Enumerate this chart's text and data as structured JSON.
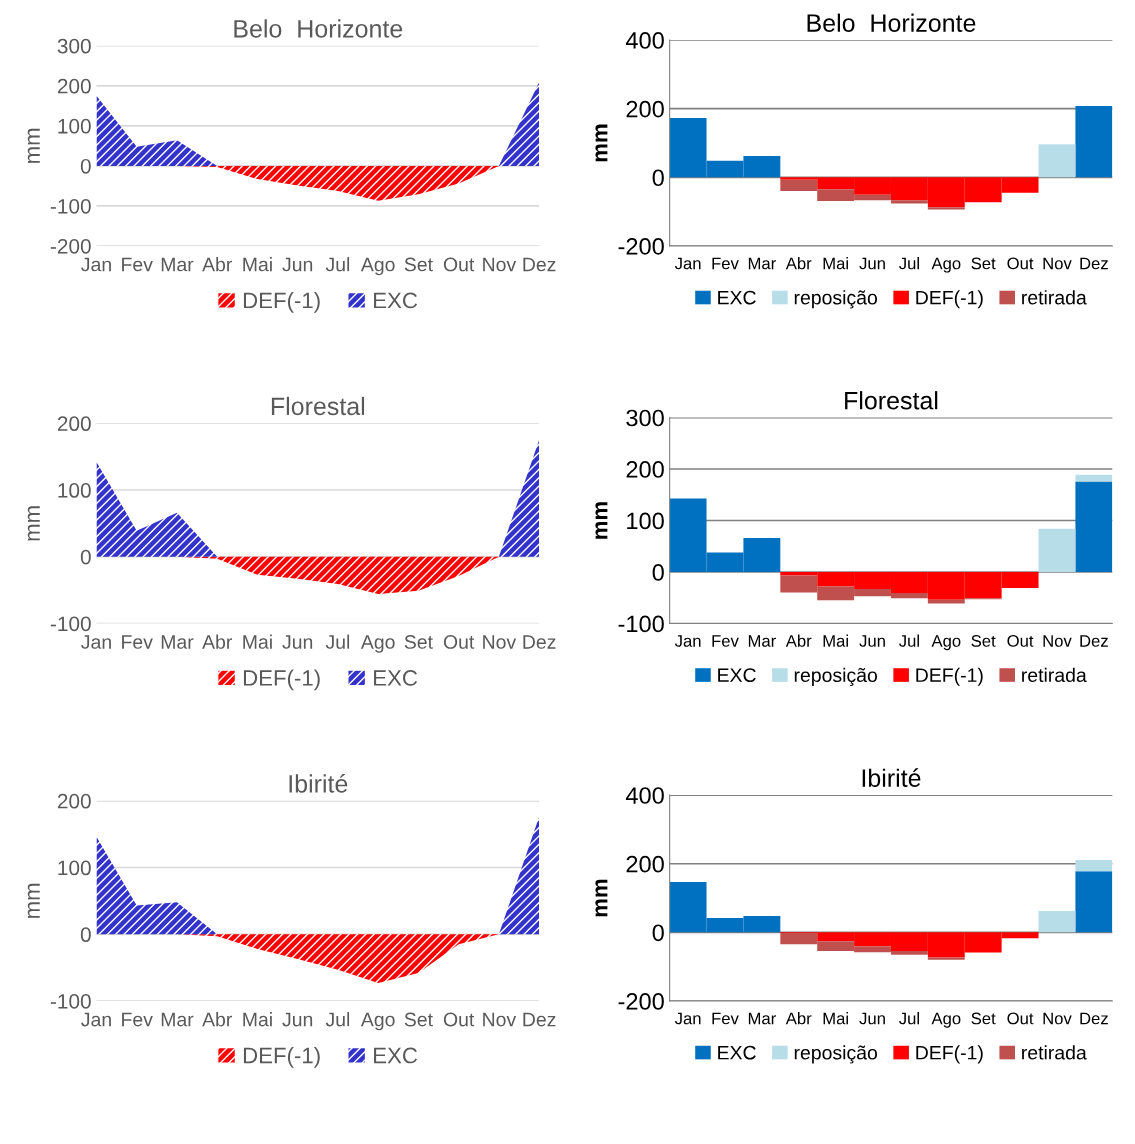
{
  "chart_data": [
    {
      "type": "area",
      "title": "Belo  Horizonte",
      "ylabel": "mm",
      "categories": [
        "Jan",
        "Fev",
        "Mar",
        "Abr",
        "Mai",
        "Jun",
        "Jul",
        "Ago",
        "Set",
        "Out",
        "Nov",
        "Dez"
      ],
      "ylim": [
        -200,
        300
      ],
      "yticks": [
        -200,
        -100,
        0,
        100,
        200,
        300
      ],
      "grid": "y",
      "legend": "bottom",
      "series": [
        {
          "name": "DEF(-1)",
          "color": "#ff0000",
          "values": [
            0,
            0,
            0,
            -3,
            -33,
            -49,
            -63,
            -87,
            -71,
            -44,
            0,
            0
          ]
        },
        {
          "name": "EXC",
          "color": "#3333cc",
          "values": [
            175,
            48,
            64,
            0,
            0,
            0,
            0,
            0,
            0,
            0,
            0,
            209
          ]
        }
      ]
    },
    {
      "type": "bar",
      "stacked": true,
      "title": "Belo  Horizonte",
      "ylabel": "mm",
      "categories": [
        "Jan",
        "Fev",
        "Mar",
        "Abr",
        "Mai",
        "Jun",
        "Jul",
        "Ago",
        "Set",
        "Out",
        "Nov",
        "Dez"
      ],
      "ylim": [
        -200,
        400
      ],
      "yticks": [
        -200,
        0,
        200,
        400
      ],
      "grid": "y",
      "legend": "bottom",
      "series": [
        {
          "name": "EXC",
          "color": "#0070c0",
          "values": [
            173,
            48,
            62,
            null,
            null,
            null,
            null,
            null,
            null,
            null,
            null,
            208
          ]
        },
        {
          "name": "reposição",
          "color": "#b7dde8",
          "values": [
            null,
            null,
            null,
            null,
            null,
            null,
            null,
            null,
            null,
            null,
            96,
            null
          ]
        },
        {
          "name": "DEF(-1)",
          "color": "#ff0000",
          "values": [
            null,
            null,
            null,
            -7,
            -35,
            -51,
            -67,
            -87,
            -73,
            -45,
            null,
            null
          ]
        },
        {
          "name": "retirada",
          "color": "#c0504d",
          "values": [
            null,
            null,
            null,
            -33,
            -34,
            -16,
            -9,
            -7,
            null,
            null,
            null,
            null
          ]
        }
      ]
    },
    {
      "type": "area",
      "title": "Florestal",
      "ylabel": "mm",
      "categories": [
        "Jan",
        "Fev",
        "Mar",
        "Abr",
        "Mai",
        "Jun",
        "Jul",
        "Ago",
        "Set",
        "Out",
        "Nov",
        "Dez"
      ],
      "ylim": [
        -100,
        200
      ],
      "yticks": [
        -100,
        0,
        100,
        200
      ],
      "grid": "y",
      "legend": "bottom",
      "series": [
        {
          "name": "DEF(-1)",
          "color": "#ff0000",
          "values": [
            0,
            0,
            0,
            -3,
            -27,
            -33,
            -41,
            -56,
            -51,
            -29,
            0,
            0
          ]
        },
        {
          "name": "EXC",
          "color": "#3333cc",
          "values": [
            142,
            39,
            66,
            0,
            0,
            0,
            0,
            0,
            0,
            0,
            0,
            175
          ]
        }
      ]
    },
    {
      "type": "bar",
      "stacked": true,
      "title": "Florestal",
      "ylabel": "mm",
      "categories": [
        "Jan",
        "Fev",
        "Mar",
        "Abr",
        "Mai",
        "Jun",
        "Jul",
        "Ago",
        "Set",
        "Out",
        "Nov",
        "Dez"
      ],
      "ylim": [
        -100,
        300
      ],
      "yticks": [
        -100,
        0,
        100,
        200,
        300
      ],
      "grid": "y",
      "legend": "bottom",
      "series": [
        {
          "name": "EXC",
          "color": "#0070c0",
          "values": [
            143,
            38,
            66,
            null,
            null,
            null,
            null,
            null,
            null,
            null,
            null,
            176
          ]
        },
        {
          "name": "reposição",
          "color": "#b7dde8",
          "values": [
            null,
            null,
            null,
            null,
            null,
            null,
            null,
            null,
            null,
            null,
            84,
            13
          ]
        },
        {
          "name": "DEF(-1)",
          "color": "#ff0000",
          "values": [
            null,
            null,
            null,
            -7,
            -28,
            -33,
            -41,
            -54,
            -51,
            -31,
            null,
            null
          ]
        },
        {
          "name": "retirada",
          "color": "#c0504d",
          "values": [
            null,
            null,
            null,
            -33,
            -27,
            -14,
            -10,
            -7,
            -2,
            null,
            null,
            null
          ]
        }
      ]
    },
    {
      "type": "area",
      "title": "Ibirité",
      "ylabel": "mm",
      "categories": [
        "Jan",
        "Fev",
        "Mar",
        "Abr",
        "Mai",
        "Jun",
        "Jul",
        "Ago",
        "Set",
        "Out",
        "Nov",
        "Dez"
      ],
      "ylim": [
        -100,
        200
      ],
      "yticks": [
        -100,
        0,
        100,
        200
      ],
      "grid": "y",
      "legend": "bottom",
      "series": [
        {
          "name": "DEF(-1)",
          "color": "#ff0000",
          "values": [
            0,
            0,
            0,
            -3,
            -22,
            -37,
            -53,
            -73,
            -58,
            -15,
            0,
            0
          ]
        },
        {
          "name": "EXC",
          "color": "#3333cc",
          "values": [
            146,
            43,
            48,
            0,
            0,
            0,
            0,
            0,
            0,
            0,
            0,
            176
          ]
        }
      ]
    },
    {
      "type": "bar",
      "stacked": true,
      "title": "Ibirité",
      "ylabel": "mm",
      "categories": [
        "Jan",
        "Fev",
        "Mar",
        "Abr",
        "Mai",
        "Jun",
        "Jul",
        "Ago",
        "Set",
        "Out",
        "Nov",
        "Dez"
      ],
      "ylim": [
        -200,
        400
      ],
      "yticks": [
        -200,
        0,
        200,
        400
      ],
      "grid": "y",
      "legend": "bottom",
      "series": [
        {
          "name": "EXC",
          "color": "#0070c0",
          "values": [
            147,
            42,
            48,
            null,
            null,
            null,
            null,
            null,
            null,
            null,
            null,
            178
          ]
        },
        {
          "name": "reposição",
          "color": "#b7dde8",
          "values": [
            null,
            null,
            null,
            null,
            null,
            null,
            null,
            null,
            null,
            null,
            62,
            33
          ]
        },
        {
          "name": "DEF(-1)",
          "color": "#ff0000",
          "values": [
            null,
            null,
            null,
            -2,
            -26,
            -41,
            -54,
            -73,
            -59,
            -17,
            null,
            null
          ]
        },
        {
          "name": "retirada",
          "color": "#c0504d",
          "values": [
            null,
            null,
            null,
            -33,
            -28,
            -17,
            -11,
            -7,
            null,
            null,
            null,
            null
          ]
        }
      ]
    }
  ]
}
